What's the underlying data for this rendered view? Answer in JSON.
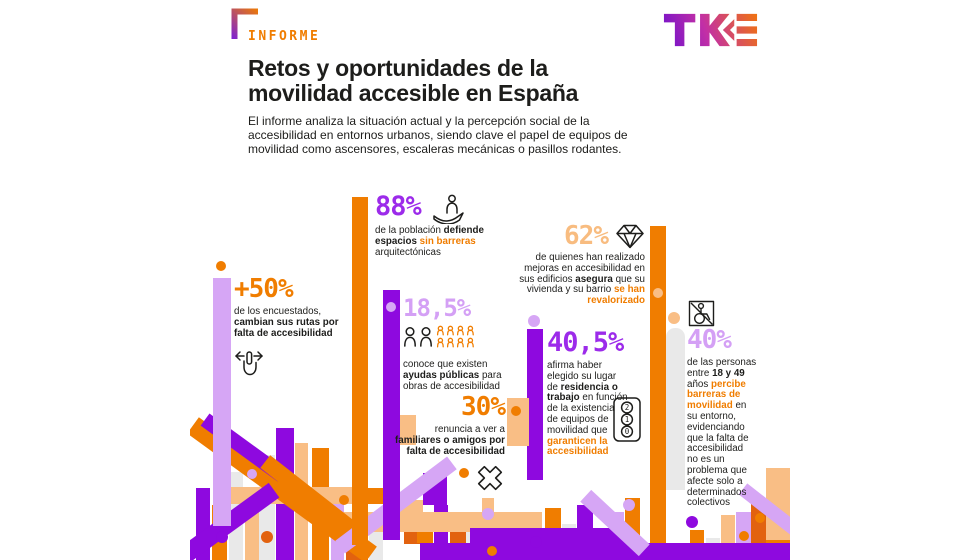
{
  "palette": {
    "orange": "#F07D00",
    "dark_orange": "#E2620F",
    "peach": "#F9BE85",
    "purple": "#8E09DF",
    "lavender": "#D6A6F5",
    "gray": "#E9E9E9",
    "ink": "#1D1D1B"
  },
  "header": {
    "kicker": "INFORME",
    "title": "Retos y oportunidades de la\nmovilidad accesible en España",
    "subtitle": "El informe analiza la situación actual y la percepción social de la\naccesibilidad en entornos urbanos, siendo clave el papel de equipos de\nmovilidad como ascensores, escaleras mecánicas o pasillos rodantes.",
    "logo_text": "TKE"
  },
  "stats": [
    {
      "id": "rutas",
      "value": "+50%",
      "value_color": "#F07D00",
      "icon": "direction-change-hand-icon",
      "lines": [
        [
          {
            "t": "de los encuestados,",
            "s": "n"
          }
        ],
        [
          {
            "t": "cambian sus rutas por",
            "s": "b"
          }
        ],
        [
          {
            "t": "falta de accesibilidad",
            "s": "b"
          }
        ]
      ]
    },
    {
      "id": "barreras",
      "value": "88%",
      "value_color": "#9C2BEA",
      "icon": "person-on-hand-icon",
      "lines": [
        [
          {
            "t": "de la población ",
            "s": "n"
          },
          {
            "t": "defiende",
            "s": "b"
          }
        ],
        [
          {
            "t": "espacios ",
            "s": "b"
          },
          {
            "t": "sin barreras",
            "s": "o"
          }
        ],
        [
          {
            "t": "arquitectónicas",
            "s": "n"
          }
        ]
      ]
    },
    {
      "id": "ayudas",
      "value": "18,5%",
      "value_color": "#D4A0F5",
      "icon": "people-group-icon",
      "lines": [
        [
          {
            "t": "conoce que existen",
            "s": "n"
          }
        ],
        [
          {
            "t": "ayudas públicas",
            "s": "b"
          },
          {
            "t": " para",
            "s": "n"
          }
        ],
        [
          {
            "t": "obras de accesibilidad",
            "s": "n"
          }
        ]
      ]
    },
    {
      "id": "renuncia",
      "value": "30%",
      "value_color": "#F07D00",
      "icon": "crossed-x-icon",
      "lines": [
        [
          {
            "t": "renuncia a ver a",
            "s": "n"
          }
        ],
        [
          {
            "t": "familiares o amigos por",
            "s": "b"
          }
        ],
        [
          {
            "t": "falta de accesibilidad",
            "s": "b"
          }
        ]
      ]
    },
    {
      "id": "revalorizado",
      "value": "62%",
      "value_color": "#F8BC80",
      "icon": "diamond-icon",
      "lines": [
        [
          {
            "t": "de quienes han realizado",
            "s": "n"
          }
        ],
        [
          {
            "t": "mejoras en accesibilidad en",
            "s": "n"
          }
        ],
        [
          {
            "t": "sus edificios ",
            "s": "n"
          },
          {
            "t": "asegura",
            "s": "b"
          },
          {
            "t": " que su",
            "s": "n"
          }
        ],
        [
          {
            "t": "vivienda y su barrio ",
            "s": "n"
          },
          {
            "t": "se han",
            "s": "o"
          }
        ],
        [
          {
            "t": "revalorizado",
            "s": "o"
          }
        ]
      ]
    },
    {
      "id": "eleccion",
      "value": "40,5%",
      "value_color": "#9C2BEA",
      "icon": "elevator-buttons-icon",
      "lines": [
        [
          {
            "t": "afirma haber",
            "s": "n"
          }
        ],
        [
          {
            "t": "elegido su lugar",
            "s": "n"
          }
        ],
        [
          {
            "t": "de ",
            "s": "n"
          },
          {
            "t": "residencia o",
            "s": "b"
          }
        ],
        [
          {
            "t": "trabajo",
            "s": "b"
          },
          {
            "t": " en función",
            "s": "n"
          }
        ],
        [
          {
            "t": "de la existencia",
            "s": "n"
          }
        ],
        [
          {
            "t": "de equipos de",
            "s": "n"
          }
        ],
        [
          {
            "t": "movilidad que",
            "s": "n"
          }
        ],
        [
          {
            "t": "garanticen la",
            "s": "o"
          }
        ],
        [
          {
            "t": "accesibilidad",
            "s": "o"
          }
        ]
      ]
    },
    {
      "id": "percepcion",
      "value": "40%",
      "value_color": "#D4A0F5",
      "icon": "no-wheelchair-icon",
      "lines": [
        [
          {
            "t": "de las personas",
            "s": "n"
          }
        ],
        [
          {
            "t": "entre ",
            "s": "n"
          },
          {
            "t": "18 y 49",
            "s": "b"
          }
        ],
        [
          {
            "t": "años ",
            "s": "n"
          },
          {
            "t": "percibe",
            "s": "o"
          }
        ],
        [
          {
            "t": "barreras de",
            "s": "o"
          }
        ],
        [
          {
            "t": "movilidad",
            "s": "o"
          },
          {
            "t": " en",
            "s": "n"
          }
        ],
        [
          {
            "t": "su entorno,",
            "s": "n"
          }
        ],
        [
          {
            "t": "evidenciando",
            "s": "n"
          }
        ],
        [
          {
            "t": "que la falta de",
            "s": "n"
          }
        ],
        [
          {
            "t": "accesibilidad",
            "s": "n"
          }
        ],
        [
          {
            "t": "no es un",
            "s": "n"
          }
        ],
        [
          {
            "t": "problema que",
            "s": "n"
          }
        ],
        [
          {
            "t": "afecte solo a",
            "s": "n"
          }
        ],
        [
          {
            "t": "determinados",
            "s": "n"
          }
        ],
        [
          {
            "t": "colectivos",
            "s": "n"
          }
        ]
      ]
    }
  ]
}
